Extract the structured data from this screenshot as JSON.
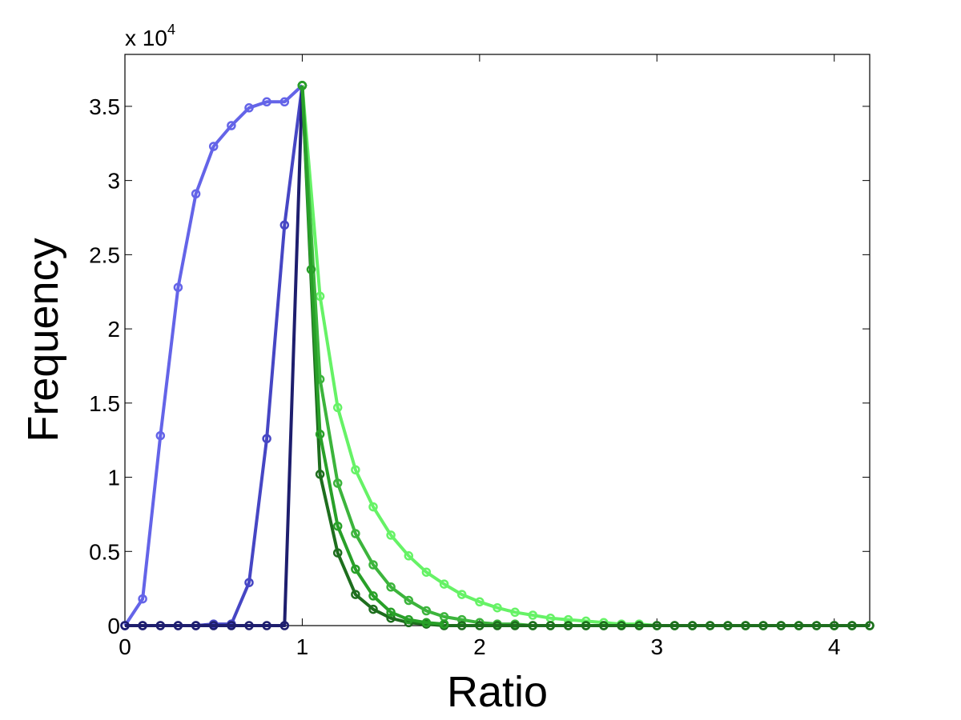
{
  "chart_data": {
    "type": "line",
    "title": "",
    "xlabel": "Ratio",
    "ylabel": "Frequency",
    "y_multiplier": {
      "base": "x 10",
      "exponent": "4"
    },
    "xlim": [
      0,
      4.2
    ],
    "ylim": [
      0,
      3.85
    ],
    "xticks": [
      0,
      1,
      2,
      3,
      4
    ],
    "xtick_labels": [
      "0",
      "1",
      "2",
      "3",
      "4"
    ],
    "yticks": [
      0,
      0.5,
      1,
      1.5,
      2,
      2.5,
      3,
      3.5
    ],
    "ytick_labels": [
      "0",
      "0.5",
      "1",
      "1.5",
      "2",
      "2.5",
      "3",
      "3.5"
    ],
    "grid": false,
    "legend": "none",
    "series": [
      {
        "color": "#6464e8",
        "x": [
          0,
          0.1,
          0.2,
          0.3,
          0.4,
          0.5,
          0.6,
          0.7,
          0.8,
          0.9,
          1.0
        ],
        "y": [
          0,
          0.18,
          1.28,
          2.28,
          2.91,
          3.23,
          3.37,
          3.49,
          3.53,
          3.53,
          3.64
        ]
      },
      {
        "color": "#4646c4",
        "x": [
          0,
          0.1,
          0.2,
          0.3,
          0.4,
          0.5,
          0.6,
          0.7,
          0.8,
          0.9,
          1.0
        ],
        "y": [
          0,
          0,
          0,
          0,
          0,
          0.01,
          0.01,
          0.29,
          1.26,
          2.7,
          3.64
        ]
      },
      {
        "color": "#1e1e6e",
        "x": [
          0,
          0.1,
          0.2,
          0.3,
          0.4,
          0.5,
          0.6,
          0.7,
          0.8,
          0.9,
          1.0
        ],
        "y": [
          0,
          0,
          0,
          0,
          0,
          0,
          0,
          0,
          0,
          0,
          3.64
        ]
      },
      {
        "color": "#66f266",
        "x": [
          1.0,
          1.1,
          1.2,
          1.3,
          1.4,
          1.5,
          1.6,
          1.7,
          1.8,
          1.9,
          2.0,
          2.1,
          2.2,
          2.3,
          2.4,
          2.5,
          2.6,
          2.7,
          2.8,
          2.9,
          3.0,
          3.1,
          3.2,
          3.3,
          3.4,
          3.5,
          3.6,
          3.7,
          3.8,
          3.9,
          4.0,
          4.1,
          4.2
        ],
        "y": [
          3.64,
          2.22,
          1.47,
          1.05,
          0.8,
          0.61,
          0.47,
          0.36,
          0.28,
          0.21,
          0.16,
          0.12,
          0.09,
          0.07,
          0.05,
          0.04,
          0.03,
          0.02,
          0.01,
          0.01,
          0,
          0,
          0,
          0,
          0,
          0,
          0,
          0,
          0,
          0,
          0,
          0,
          0
        ]
      },
      {
        "color": "#3cb43c",
        "x": [
          1.0,
          1.1,
          1.2,
          1.3,
          1.4,
          1.5,
          1.6,
          1.7,
          1.8,
          1.9,
          2.0,
          2.1,
          2.2,
          2.3,
          2.4,
          2.5,
          2.6,
          2.7,
          2.8,
          2.9,
          3.0,
          3.1,
          3.2,
          3.3,
          3.4,
          3.5,
          3.6,
          3.7,
          3.8,
          3.9,
          4.0,
          4.1,
          4.2
        ],
        "y": [
          3.64,
          1.66,
          0.96,
          0.62,
          0.41,
          0.26,
          0.17,
          0.1,
          0.06,
          0.04,
          0.02,
          0.01,
          0.01,
          0,
          0,
          0,
          0,
          0,
          0,
          0,
          0,
          0,
          0,
          0,
          0,
          0,
          0,
          0,
          0,
          0,
          0,
          0,
          0
        ]
      },
      {
        "color": "#1e6e1e",
        "x": [
          1.0,
          1.1,
          1.2,
          1.3,
          1.4,
          1.5,
          1.6,
          1.7,
          1.8,
          1.9,
          2.0,
          2.1,
          2.2,
          2.3,
          2.4,
          2.5,
          2.6,
          2.7,
          2.8,
          2.9,
          3.0,
          3.1,
          3.2,
          3.3,
          3.4,
          3.5,
          3.6,
          3.7,
          3.8,
          3.9,
          4.0,
          4.1,
          4.2
        ],
        "y": [
          3.64,
          1.02,
          0.49,
          0.21,
          0.11,
          0.05,
          0.02,
          0.01,
          0,
          0,
          0,
          0,
          0,
          0,
          0,
          0,
          0,
          0,
          0,
          0,
          0,
          0,
          0,
          0,
          0,
          0,
          0,
          0,
          0,
          0,
          0,
          0,
          0
        ]
      },
      {
        "color": "#28a028",
        "x": [
          1.0,
          1.05,
          1.1,
          1.2,
          1.3,
          1.4,
          1.5,
          1.6,
          1.7,
          1.8
        ],
        "y": [
          3.64,
          2.4,
          1.29,
          0.67,
          0.38,
          0.2,
          0.09,
          0.04,
          0.02,
          0.01
        ]
      }
    ]
  }
}
